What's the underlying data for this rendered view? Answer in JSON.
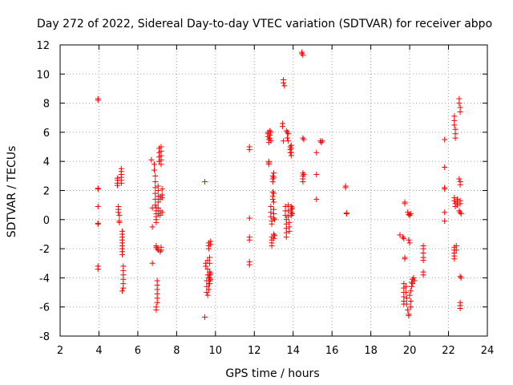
{
  "chart_data": {
    "type": "scatter",
    "title": "Day 272 of 2022, Sidereal Day-to-day VTEC variation (SDTVAR) for receiver abpo",
    "xlabel": "GPS time / hours",
    "ylabel": "SDTVAR / TECUs",
    "xlim": [
      2,
      24
    ],
    "ylim": [
      -8,
      12
    ],
    "xticks": [
      2,
      4,
      6,
      8,
      10,
      12,
      14,
      16,
      18,
      20,
      22,
      24
    ],
    "yticks": [
      -8,
      -6,
      -4,
      -2,
      0,
      2,
      4,
      6,
      8,
      10,
      12
    ],
    "xtick_labels": [
      "2",
      "4",
      "6",
      "8",
      "10",
      "12",
      "14",
      "16",
      "18",
      "20",
      "22",
      "24"
    ],
    "ytick_labels": [
      "-8",
      "-6",
      "-4",
      "-2",
      "0",
      "2",
      "4",
      "6",
      "8",
      "10",
      "12"
    ],
    "grid": true,
    "marker": "+",
    "color": "#ff0000",
    "series": [
      {
        "name": "SDTVAR",
        "points": [
          [
            3.95,
            8.3
          ],
          [
            3.95,
            8.2
          ],
          [
            3.95,
            2.15
          ],
          [
            3.95,
            2.1
          ],
          [
            3.95,
            0.9
          ],
          [
            3.95,
            -0.25
          ],
          [
            3.95,
            -0.3
          ],
          [
            3.95,
            -3.2
          ],
          [
            3.95,
            -3.4
          ],
          [
            4.95,
            2.85
          ],
          [
            4.95,
            2.7
          ],
          [
            4.95,
            2.5
          ],
          [
            4.95,
            2.35
          ],
          [
            5.0,
            0.9
          ],
          [
            5.0,
            0.7
          ],
          [
            5.0,
            0.5
          ],
          [
            5.05,
            0.3
          ],
          [
            5.05,
            -0.1
          ],
          [
            5.05,
            -0.2
          ],
          [
            5.15,
            3.5
          ],
          [
            5.15,
            3.3
          ],
          [
            5.15,
            3.1
          ],
          [
            5.15,
            2.9
          ],
          [
            5.15,
            2.7
          ],
          [
            5.15,
            2.5
          ],
          [
            5.2,
            -0.8
          ],
          [
            5.2,
            -1.0
          ],
          [
            5.2,
            -1.2
          ],
          [
            5.2,
            -1.4
          ],
          [
            5.2,
            -1.6
          ],
          [
            5.2,
            -1.8
          ],
          [
            5.2,
            -2.0
          ],
          [
            5.2,
            -2.2
          ],
          [
            5.2,
            -2.4
          ],
          [
            5.25,
            -3.2
          ],
          [
            5.25,
            -3.5
          ],
          [
            5.25,
            -3.8
          ],
          [
            5.25,
            -4.1
          ],
          [
            5.25,
            -4.4
          ],
          [
            5.25,
            -4.7
          ],
          [
            5.2,
            -4.9
          ],
          [
            6.7,
            4.1
          ],
          [
            6.75,
            0.8
          ],
          [
            6.75,
            -0.5
          ],
          [
            6.75,
            -3.0
          ],
          [
            6.85,
            3.8
          ],
          [
            6.85,
            3.4
          ],
          [
            6.9,
            3.0
          ],
          [
            6.9,
            2.6
          ],
          [
            6.9,
            2.2
          ],
          [
            6.9,
            1.8
          ],
          [
            6.9,
            1.4
          ],
          [
            6.9,
            1.0
          ],
          [
            6.95,
            0.8
          ],
          [
            6.95,
            0.6
          ],
          [
            6.95,
            0.4
          ],
          [
            6.95,
            0.2
          ],
          [
            6.95,
            0.0
          ],
          [
            6.95,
            -0.2
          ],
          [
            6.95,
            -1.8
          ],
          [
            6.95,
            -1.9
          ],
          [
            7.0,
            -2.0
          ],
          [
            7.05,
            -2.1
          ],
          [
            7.0,
            -4.2
          ],
          [
            7.0,
            -4.5
          ],
          [
            7.0,
            -4.8
          ],
          [
            7.0,
            -5.1
          ],
          [
            7.0,
            -5.4
          ],
          [
            7.0,
            -5.7
          ],
          [
            6.95,
            -6.0
          ],
          [
            6.95,
            -6.2
          ],
          [
            7.05,
            2.3
          ],
          [
            7.05,
            2.0
          ],
          [
            7.05,
            1.6
          ],
          [
            7.05,
            1.2
          ],
          [
            7.05,
            0.8
          ],
          [
            7.05,
            0.4
          ],
          [
            7.1,
            4.9
          ],
          [
            7.1,
            4.6
          ],
          [
            7.1,
            4.3
          ],
          [
            7.1,
            4.0
          ],
          [
            7.15,
            1.6
          ],
          [
            7.15,
            1.4
          ],
          [
            7.15,
            0.6
          ],
          [
            7.15,
            0.3
          ],
          [
            7.2,
            -1.9
          ],
          [
            7.2,
            -2.1
          ],
          [
            7.15,
            -2.2
          ],
          [
            7.2,
            5.0
          ],
          [
            7.2,
            4.7
          ],
          [
            7.2,
            4.4
          ],
          [
            7.2,
            4.1
          ],
          [
            7.2,
            3.8
          ],
          [
            7.25,
            2.1
          ],
          [
            7.25,
            1.7
          ],
          [
            7.25,
            1.5
          ],
          [
            7.25,
            0.5
          ],
          [
            9.45,
            2.6
          ],
          [
            9.45,
            -6.7
          ],
          [
            9.5,
            -3.0
          ],
          [
            9.5,
            -3.2
          ],
          [
            9.55,
            -4.2
          ],
          [
            9.55,
            -4.6
          ],
          [
            9.55,
            -5.0
          ],
          [
            9.6,
            -5.2
          ],
          [
            9.6,
            -2.8
          ],
          [
            9.6,
            -3.4
          ],
          [
            9.6,
            -3.8
          ],
          [
            9.65,
            -4.0
          ],
          [
            9.65,
            -4.4
          ],
          [
            9.65,
            -4.8
          ],
          [
            9.65,
            -1.6
          ],
          [
            9.65,
            -1.8
          ],
          [
            9.65,
            -2.0
          ],
          [
            9.7,
            -2.6
          ],
          [
            9.7,
            -3.0
          ],
          [
            9.7,
            -3.6
          ],
          [
            9.7,
            -3.8
          ],
          [
            9.7,
            -4.0
          ],
          [
            9.7,
            -4.2
          ],
          [
            9.7,
            -4.4
          ],
          [
            9.75,
            -1.5
          ],
          [
            9.75,
            -1.7
          ],
          [
            9.75,
            -3.7
          ],
          [
            9.75,
            -4.1
          ],
          [
            11.75,
            5.0
          ],
          [
            11.75,
            4.8
          ],
          [
            11.75,
            0.1
          ],
          [
            11.75,
            -1.2
          ],
          [
            11.75,
            -1.4
          ],
          [
            11.75,
            -2.9
          ],
          [
            11.75,
            -3.1
          ],
          [
            12.7,
            6.0
          ],
          [
            12.7,
            5.9
          ],
          [
            12.7,
            5.7
          ],
          [
            12.75,
            5.5
          ],
          [
            12.75,
            5.3
          ],
          [
            12.75,
            4.0
          ],
          [
            12.75,
            3.9
          ],
          [
            12.75,
            3.8
          ],
          [
            12.8,
            6.1
          ],
          [
            12.8,
            5.8
          ],
          [
            12.8,
            5.6
          ],
          [
            12.85,
            6.0
          ],
          [
            12.85,
            5.4
          ],
          [
            12.85,
            0.9
          ],
          [
            12.85,
            0.5
          ],
          [
            12.85,
            0.2
          ],
          [
            12.9,
            -0.1
          ],
          [
            12.9,
            -0.3
          ],
          [
            12.9,
            -1.2
          ],
          [
            12.9,
            -1.4
          ],
          [
            12.9,
            -1.6
          ],
          [
            12.9,
            -1.8
          ],
          [
            12.95,
            3.0
          ],
          [
            12.95,
            2.8
          ],
          [
            12.95,
            2.6
          ],
          [
            13.0,
            3.2
          ],
          [
            13.0,
            2.9
          ],
          [
            12.95,
            1.9
          ],
          [
            12.95,
            1.6
          ],
          [
            12.95,
            1.4
          ],
          [
            13.0,
            1.8
          ],
          [
            13.0,
            1.2
          ],
          [
            13.0,
            0.7
          ],
          [
            13.0,
            0.4
          ],
          [
            13.0,
            0.1
          ],
          [
            13.05,
            0.0
          ],
          [
            13.0,
            -1.0
          ],
          [
            13.0,
            -1.3
          ],
          [
            13.05,
            -1.1
          ],
          [
            13.45,
            6.6
          ],
          [
            13.45,
            6.4
          ],
          [
            13.5,
            5.4
          ],
          [
            13.5,
            9.6
          ],
          [
            13.5,
            9.4
          ],
          [
            13.55,
            9.2
          ],
          [
            13.6,
            0.9
          ],
          [
            13.6,
            0.6
          ],
          [
            13.6,
            0.3
          ],
          [
            13.65,
            0.0
          ],
          [
            13.65,
            -0.3
          ],
          [
            13.65,
            -0.6
          ],
          [
            13.65,
            -0.9
          ],
          [
            13.65,
            -1.2
          ],
          [
            13.65,
            6.1
          ],
          [
            13.7,
            6.0
          ],
          [
            13.75,
            5.9
          ],
          [
            13.7,
            5.6
          ],
          [
            13.75,
            5.4
          ],
          [
            13.75,
            1.0
          ],
          [
            13.75,
            0.6
          ],
          [
            13.75,
            0.2
          ],
          [
            13.8,
            -0.2
          ],
          [
            13.8,
            -0.5
          ],
          [
            13.8,
            -0.8
          ],
          [
            13.85,
            5.0
          ],
          [
            13.85,
            4.8
          ],
          [
            13.85,
            4.6
          ],
          [
            13.9,
            5.1
          ],
          [
            13.9,
            4.9
          ],
          [
            13.9,
            4.6
          ],
          [
            13.9,
            4.4
          ],
          [
            13.9,
            0.9
          ],
          [
            13.9,
            0.7
          ],
          [
            13.9,
            0.5
          ],
          [
            13.9,
            0.3
          ],
          [
            13.95,
            0.8
          ],
          [
            13.95,
            0.4
          ],
          [
            14.45,
            11.5
          ],
          [
            14.45,
            11.4
          ],
          [
            14.5,
            11.3
          ],
          [
            14.5,
            5.6
          ],
          [
            14.55,
            5.5
          ],
          [
            14.5,
            3.2
          ],
          [
            14.5,
            3.0
          ],
          [
            14.5,
            2.8
          ],
          [
            14.5,
            2.6
          ],
          [
            14.55,
            3.1
          ],
          [
            15.2,
            4.6
          ],
          [
            15.2,
            3.1
          ],
          [
            15.2,
            1.4
          ],
          [
            15.4,
            5.4
          ],
          [
            15.45,
            5.3
          ],
          [
            15.5,
            5.4
          ],
          [
            16.7,
            2.3
          ],
          [
            16.7,
            2.2
          ],
          [
            16.75,
            0.45
          ],
          [
            16.75,
            0.4
          ],
          [
            19.5,
            -1.05
          ],
          [
            19.65,
            -1.2
          ],
          [
            19.7,
            -1.3
          ],
          [
            19.75,
            -2.6
          ],
          [
            19.75,
            -2.7
          ],
          [
            19.7,
            -4.4
          ],
          [
            19.7,
            -4.7
          ],
          [
            19.7,
            -5.0
          ],
          [
            19.7,
            -5.3
          ],
          [
            19.7,
            -5.6
          ],
          [
            19.7,
            -5.8
          ],
          [
            19.75,
            1.2
          ],
          [
            19.75,
            1.1
          ],
          [
            19.8,
            -4.6
          ],
          [
            19.8,
            -5.0
          ],
          [
            19.85,
            -5.4
          ],
          [
            19.85,
            -5.8
          ],
          [
            19.9,
            -6.2
          ],
          [
            19.95,
            -6.5
          ],
          [
            19.95,
            -6.6
          ],
          [
            19.9,
            0.5
          ],
          [
            19.95,
            0.35
          ],
          [
            20.0,
            0.3
          ],
          [
            20.05,
            0.4
          ],
          [
            19.95,
            -1.4
          ],
          [
            20.0,
            -1.6
          ],
          [
            20.0,
            -5.2
          ],
          [
            20.05,
            -4.9
          ],
          [
            20.05,
            -5.6
          ],
          [
            20.05,
            -6.0
          ],
          [
            20.1,
            -4.6
          ],
          [
            20.1,
            -4.3
          ],
          [
            20.15,
            -4.1
          ],
          [
            20.15,
            -4.4
          ],
          [
            20.2,
            -4.0
          ],
          [
            20.25,
            -4.2
          ],
          [
            20.7,
            -1.8
          ],
          [
            20.7,
            -2.0
          ],
          [
            20.7,
            -2.3
          ],
          [
            20.7,
            -2.6
          ],
          [
            20.7,
            -2.8
          ],
          [
            20.7,
            -3.6
          ],
          [
            20.7,
            -3.8
          ],
          [
            21.8,
            5.5
          ],
          [
            21.8,
            3.6
          ],
          [
            21.8,
            2.2
          ],
          [
            21.8,
            2.1
          ],
          [
            21.8,
            0.5
          ],
          [
            21.8,
            -0.1
          ],
          [
            22.3,
            7.1
          ],
          [
            22.3,
            6.8
          ],
          [
            22.3,
            6.5
          ],
          [
            22.35,
            6.2
          ],
          [
            22.35,
            5.9
          ],
          [
            22.35,
            5.6
          ],
          [
            22.3,
            1.5
          ],
          [
            22.3,
            1.3
          ],
          [
            22.35,
            1.1
          ],
          [
            22.35,
            0.9
          ],
          [
            22.3,
            -1.9
          ],
          [
            22.3,
            -2.1
          ],
          [
            22.3,
            -2.3
          ],
          [
            22.3,
            -2.5
          ],
          [
            22.3,
            -2.7
          ],
          [
            22.4,
            -1.8
          ],
          [
            22.4,
            -2.1
          ],
          [
            22.45,
            1.4
          ],
          [
            22.45,
            1.2
          ],
          [
            22.45,
            1.0
          ],
          [
            22.55,
            8.3
          ],
          [
            22.55,
            8.0
          ],
          [
            22.6,
            7.7
          ],
          [
            22.6,
            7.4
          ],
          [
            22.55,
            2.8
          ],
          [
            22.6,
            2.6
          ],
          [
            22.6,
            2.4
          ],
          [
            22.55,
            0.6
          ],
          [
            22.6,
            0.5
          ],
          [
            22.65,
            0.4
          ],
          [
            22.6,
            1.3
          ],
          [
            22.6,
            1.1
          ],
          [
            22.6,
            -3.9
          ],
          [
            22.65,
            -4.0
          ],
          [
            22.6,
            -5.7
          ],
          [
            22.6,
            -5.9
          ],
          [
            22.6,
            -6.1
          ]
        ]
      }
    ]
  }
}
